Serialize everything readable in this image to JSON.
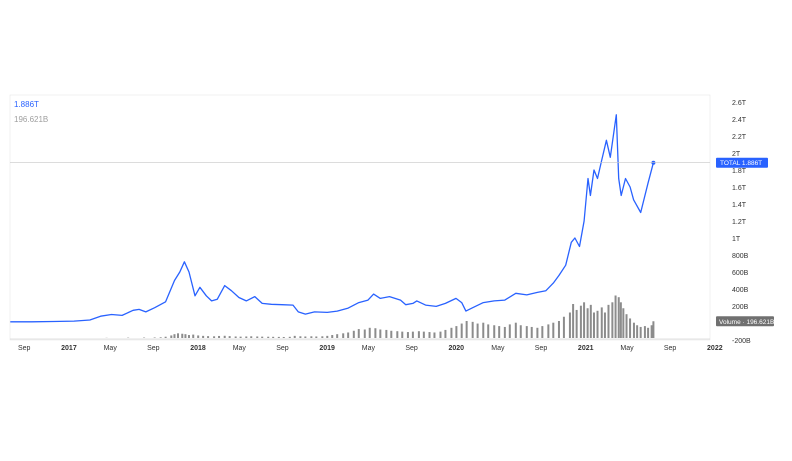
{
  "legend": {
    "main_value": "1.886T",
    "volume_value": "196.621B"
  },
  "colors": {
    "line": "#2962ff",
    "volume": "#8c8c8c",
    "axis_text": "#333333",
    "grid": "#e0e3eb",
    "volume_label_bg": "#707070"
  },
  "chart_data": {
    "type": "line",
    "x_ticks": [
      "Sep",
      "2017",
      "May",
      "Sep",
      "2018",
      "May",
      "Sep",
      "2019",
      "May",
      "Sep",
      "2020",
      "May",
      "Sep",
      "2021",
      "May",
      "Sep",
      "2022"
    ],
    "x_ticks_bold": [
      "2017",
      "2018",
      "2019",
      "2020",
      "2021",
      "2022"
    ],
    "x_start": "2016-09",
    "x_end": "2022-02",
    "y_ticks": [
      "2.6T",
      "2.4T",
      "2.2T",
      "2T",
      "1.8T",
      "1.6T",
      "1.4T",
      "1.2T",
      "1T",
      "800B",
      "600B",
      "400B",
      "200B",
      "0",
      "-200B"
    ],
    "y_tick_values": [
      2600,
      2400,
      2200,
      2000,
      1800,
      1600,
      1400,
      1200,
      1000,
      800,
      600,
      400,
      200,
      0,
      -200
    ],
    "ylim": [
      -200,
      2600
    ],
    "unit": "B",
    "series": [
      {
        "name": "TOTAL",
        "last_value_label": "1.886T",
        "points": [
          [
            "2016-09-01",
            14
          ],
          [
            "2016-11-01",
            14
          ],
          [
            "2017-01-01",
            18
          ],
          [
            "2017-03-01",
            22
          ],
          [
            "2017-04-15",
            35
          ],
          [
            "2017-05-15",
            80
          ],
          [
            "2017-06-15",
            100
          ],
          [
            "2017-07-15",
            90
          ],
          [
            "2017-08-15",
            150
          ],
          [
            "2017-09-01",
            160
          ],
          [
            "2017-09-20",
            130
          ],
          [
            "2017-10-15",
            180
          ],
          [
            "2017-11-15",
            250
          ],
          [
            "2017-12-10",
            500
          ],
          [
            "2017-12-25",
            600
          ],
          [
            "2018-01-07",
            720
          ],
          [
            "2018-01-20",
            600
          ],
          [
            "2018-02-06",
            320
          ],
          [
            "2018-02-20",
            420
          ],
          [
            "2018-03-10",
            320
          ],
          [
            "2018-03-25",
            260
          ],
          [
            "2018-04-10",
            280
          ],
          [
            "2018-05-01",
            440
          ],
          [
            "2018-05-20",
            380
          ],
          [
            "2018-06-10",
            300
          ],
          [
            "2018-07-01",
            260
          ],
          [
            "2018-07-25",
            310
          ],
          [
            "2018-08-15",
            230
          ],
          [
            "2018-09-10",
            220
          ],
          [
            "2018-10-10",
            215
          ],
          [
            "2018-11-10",
            210
          ],
          [
            "2018-11-25",
            130
          ],
          [
            "2018-12-15",
            105
          ],
          [
            "2019-01-10",
            130
          ],
          [
            "2019-02-15",
            125
          ],
          [
            "2019-03-15",
            140
          ],
          [
            "2019-04-15",
            175
          ],
          [
            "2019-05-15",
            240
          ],
          [
            "2019-06-10",
            270
          ],
          [
            "2019-06-26",
            340
          ],
          [
            "2019-07-15",
            290
          ],
          [
            "2019-08-10",
            310
          ],
          [
            "2019-09-10",
            270
          ],
          [
            "2019-09-25",
            215
          ],
          [
            "2019-10-15",
            230
          ],
          [
            "2019-10-26",
            260
          ],
          [
            "2019-11-20",
            210
          ],
          [
            "2019-12-20",
            195
          ],
          [
            "2020-01-15",
            230
          ],
          [
            "2020-02-14",
            290
          ],
          [
            "2020-03-01",
            240
          ],
          [
            "2020-03-13",
            140
          ],
          [
            "2020-04-01",
            180
          ],
          [
            "2020-05-01",
            240
          ],
          [
            "2020-06-01",
            260
          ],
          [
            "2020-07-01",
            270
          ],
          [
            "2020-08-01",
            350
          ],
          [
            "2020-09-01",
            330
          ],
          [
            "2020-10-01",
            360
          ],
          [
            "2020-10-25",
            380
          ],
          [
            "2020-11-15",
            470
          ],
          [
            "2020-12-01",
            560
          ],
          [
            "2020-12-20",
            680
          ],
          [
            "2021-01-05",
            950
          ],
          [
            "2021-01-15",
            1000
          ],
          [
            "2021-01-28",
            900
          ],
          [
            "2021-02-10",
            1200
          ],
          [
            "2021-02-21",
            1700
          ],
          [
            "2021-02-28",
            1500
          ],
          [
            "2021-03-10",
            1800
          ],
          [
            "2021-03-20",
            1700
          ],
          [
            "2021-03-31",
            1900
          ],
          [
            "2021-04-14",
            2150
          ],
          [
            "2021-04-25",
            1950
          ],
          [
            "2021-05-12",
            2450
          ],
          [
            "2021-05-19",
            1700
          ],
          [
            "2021-05-26",
            1500
          ],
          [
            "2021-06-07",
            1700
          ],
          [
            "2021-06-20",
            1600
          ],
          [
            "2021-06-30",
            1450
          ],
          [
            "2021-07-20",
            1300
          ],
          [
            "2021-08-10",
            1650
          ],
          [
            "2021-08-25",
            1886
          ]
        ]
      },
      {
        "name": "Volume",
        "last_value_label": "196.621B",
        "type": "bar",
        "points": [
          [
            "2017-06-01",
            2
          ],
          [
            "2017-08-01",
            4
          ],
          [
            "2017-09-15",
            5
          ],
          [
            "2017-10-15",
            6
          ],
          [
            "2017-11-01",
            8
          ],
          [
            "2017-11-15",
            15
          ],
          [
            "2017-12-01",
            30
          ],
          [
            "2017-12-10",
            45
          ],
          [
            "2017-12-20",
            55
          ],
          [
            "2018-01-01",
            50
          ],
          [
            "2018-01-10",
            45
          ],
          [
            "2018-01-20",
            35
          ],
          [
            "2018-02-01",
            40
          ],
          [
            "2018-02-15",
            30
          ],
          [
            "2018-03-01",
            25
          ],
          [
            "2018-03-15",
            22
          ],
          [
            "2018-04-01",
            20
          ],
          [
            "2018-04-15",
            24
          ],
          [
            "2018-05-01",
            26
          ],
          [
            "2018-05-15",
            22
          ],
          [
            "2018-06-01",
            18
          ],
          [
            "2018-06-15",
            16
          ],
          [
            "2018-07-01",
            18
          ],
          [
            "2018-07-15",
            20
          ],
          [
            "2018-08-01",
            18
          ],
          [
            "2018-08-15",
            16
          ],
          [
            "2018-09-01",
            15
          ],
          [
            "2018-09-15",
            14
          ],
          [
            "2018-10-01",
            13
          ],
          [
            "2018-10-15",
            12
          ],
          [
            "2018-11-01",
            14
          ],
          [
            "2018-11-15",
            25
          ],
          [
            "2018-12-01",
            20
          ],
          [
            "2018-12-15",
            18
          ],
          [
            "2019-01-01",
            20
          ],
          [
            "2019-01-15",
            18
          ],
          [
            "2019-02-01",
            20
          ],
          [
            "2019-02-15",
            25
          ],
          [
            "2019-03-01",
            35
          ],
          [
            "2019-03-15",
            45
          ],
          [
            "2019-04-01",
            55
          ],
          [
            "2019-04-15",
            65
          ],
          [
            "2019-05-01",
            85
          ],
          [
            "2019-05-15",
            105
          ],
          [
            "2019-06-01",
            100
          ],
          [
            "2019-06-15",
            120
          ],
          [
            "2019-07-01",
            115
          ],
          [
            "2019-07-15",
            100
          ],
          [
            "2019-08-01",
            95
          ],
          [
            "2019-08-15",
            85
          ],
          [
            "2019-09-01",
            80
          ],
          [
            "2019-09-15",
            75
          ],
          [
            "2019-10-01",
            70
          ],
          [
            "2019-10-15",
            75
          ],
          [
            "2019-11-01",
            80
          ],
          [
            "2019-11-15",
            75
          ],
          [
            "2019-12-01",
            70
          ],
          [
            "2019-12-15",
            65
          ],
          [
            "2020-01-01",
            75
          ],
          [
            "2020-01-15",
            95
          ],
          [
            "2020-02-01",
            120
          ],
          [
            "2020-02-15",
            140
          ],
          [
            "2020-03-01",
            170
          ],
          [
            "2020-03-15",
            200
          ],
          [
            "2020-04-01",
            190
          ],
          [
            "2020-04-15",
            170
          ],
          [
            "2020-05-01",
            180
          ],
          [
            "2020-05-15",
            160
          ],
          [
            "2020-06-01",
            150
          ],
          [
            "2020-06-15",
            140
          ],
          [
            "2020-07-01",
            130
          ],
          [
            "2020-07-15",
            160
          ],
          [
            "2020-08-01",
            180
          ],
          [
            "2020-08-15",
            150
          ],
          [
            "2020-09-01",
            140
          ],
          [
            "2020-09-15",
            130
          ],
          [
            "2020-10-01",
            120
          ],
          [
            "2020-10-15",
            140
          ],
          [
            "2020-11-01",
            160
          ],
          [
            "2020-11-15",
            180
          ],
          [
            "2020-12-01",
            200
          ],
          [
            "2020-12-15",
            250
          ],
          [
            "2021-01-01",
            300
          ],
          [
            "2021-01-10",
            400
          ],
          [
            "2021-01-20",
            330
          ],
          [
            "2021-02-01",
            380
          ],
          [
            "2021-02-10",
            420
          ],
          [
            "2021-02-20",
            350
          ],
          [
            "2021-03-01",
            390
          ],
          [
            "2021-03-10",
            300
          ],
          [
            "2021-03-20",
            320
          ],
          [
            "2021-04-01",
            360
          ],
          [
            "2021-04-10",
            300
          ],
          [
            "2021-04-20",
            390
          ],
          [
            "2021-05-01",
            420
          ],
          [
            "2021-05-10",
            500
          ],
          [
            "2021-05-19",
            480
          ],
          [
            "2021-05-25",
            420
          ],
          [
            "2021-06-01",
            350
          ],
          [
            "2021-06-10",
            280
          ],
          [
            "2021-06-20",
            230
          ],
          [
            "2021-07-01",
            180
          ],
          [
            "2021-07-10",
            150
          ],
          [
            "2021-07-20",
            130
          ],
          [
            "2021-08-01",
            140
          ],
          [
            "2021-08-10",
            120
          ],
          [
            "2021-08-20",
            150
          ],
          [
            "2021-08-25",
            197
          ]
        ]
      }
    ],
    "grid": false,
    "crosshair_at_last_value": true
  }
}
